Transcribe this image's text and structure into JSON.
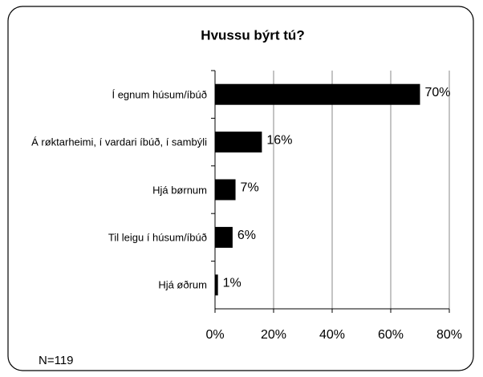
{
  "chart_data": {
    "type": "bar",
    "orientation": "horizontal",
    "title": "Hvussu býrt tú?",
    "categories": [
      "Í egnum húsum/íbúð",
      "Á røktarheimi, í vardari íbúð, í sambýli",
      "Hjá børnum",
      "Til leigu í húsum/íbúð",
      "Hjá øðrum"
    ],
    "values": [
      70,
      16,
      7,
      6,
      1
    ],
    "value_labels": [
      "70%",
      "16%",
      "7%",
      "6%",
      "1%"
    ],
    "color": "#000000",
    "xlim": [
      0,
      80
    ],
    "xticks": [
      {
        "value": 0,
        "label": "0%"
      },
      {
        "value": 20,
        "label": "20%"
      },
      {
        "value": 40,
        "label": "40%"
      },
      {
        "value": 60,
        "label": "60%"
      },
      {
        "value": 80,
        "label": "80%"
      }
    ],
    "grid": true,
    "annotation": "N=119"
  }
}
